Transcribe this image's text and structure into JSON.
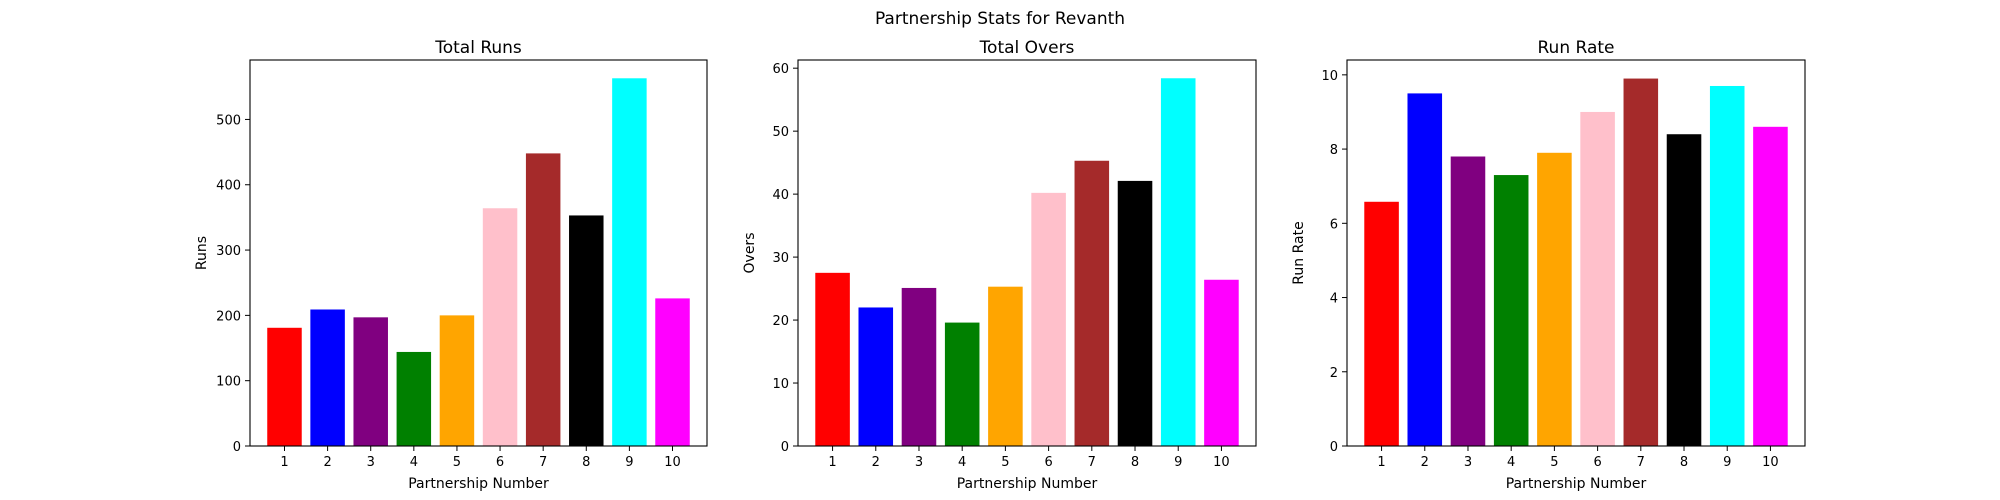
{
  "chart_data": {
    "title": "Partnership Stats for Revanth",
    "charts": [
      {
        "type": "bar",
        "title": "Total Runs",
        "xlabel": "Partnership Number",
        "ylabel": "Runs",
        "categories": [
          "1",
          "2",
          "3",
          "4",
          "5",
          "6",
          "7",
          "8",
          "9",
          "10"
        ],
        "values": [
          181,
          209,
          197,
          144,
          200,
          364,
          448,
          353,
          563,
          226
        ],
        "ylim": [
          0,
          591
        ],
        "yticks": [
          0,
          100,
          200,
          300,
          400,
          500
        ],
        "colors": [
          "#ff0000",
          "#0000ff",
          "#800080",
          "#008000",
          "#ffa500",
          "#ffc0cb",
          "#a52a2a",
          "#000000",
          "#00ffff",
          "#ff00ff"
        ],
        "grid": false
      },
      {
        "type": "bar",
        "title": "Total Overs",
        "xlabel": "Partnership Number",
        "ylabel": "Overs",
        "categories": [
          "1",
          "2",
          "3",
          "4",
          "5",
          "6",
          "7",
          "8",
          "9",
          "10"
        ],
        "values": [
          27.5,
          22.0,
          25.1,
          19.6,
          25.3,
          40.2,
          45.3,
          42.1,
          58.4,
          26.4
        ],
        "ylim": [
          0,
          61.3
        ],
        "yticks": [
          0,
          10,
          20,
          30,
          40,
          50,
          60
        ],
        "colors": [
          "#ff0000",
          "#0000ff",
          "#800080",
          "#008000",
          "#ffa500",
          "#ffc0cb",
          "#a52a2a",
          "#000000",
          "#00ffff",
          "#ff00ff"
        ],
        "grid": false
      },
      {
        "type": "bar",
        "title": "Run Rate",
        "xlabel": "Partnership Number",
        "ylabel": "Run Rate",
        "categories": [
          "1",
          "2",
          "3",
          "4",
          "5",
          "6",
          "7",
          "8",
          "9",
          "10"
        ],
        "values": [
          6.58,
          9.5,
          7.8,
          7.3,
          7.9,
          9.0,
          9.9,
          8.4,
          9.7,
          8.6
        ],
        "ylim": [
          0,
          10.4
        ],
        "yticks": [
          0,
          2,
          4,
          6,
          8,
          10
        ],
        "colors": [
          "#ff0000",
          "#0000ff",
          "#800080",
          "#008000",
          "#ffa500",
          "#ffc0cb",
          "#a52a2a",
          "#000000",
          "#00ffff",
          "#ff00ff"
        ],
        "grid": false
      }
    ]
  }
}
